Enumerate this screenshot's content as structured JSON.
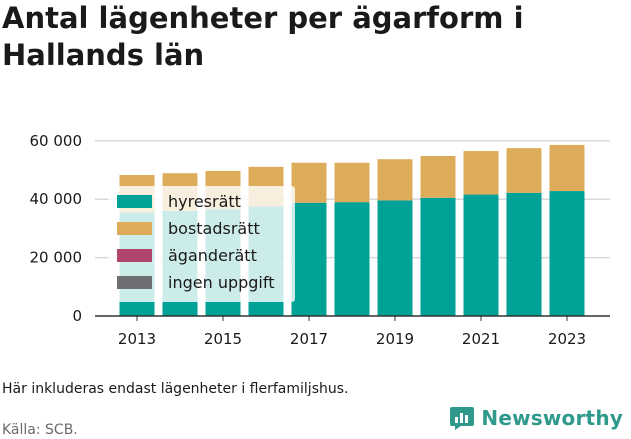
{
  "title": "Antal lägenheter per ägarform i Hallands län",
  "note": "Här inkluderas endast lägenheter i flerfamiljshus.",
  "source": "Källa: SCB.",
  "brand": "Newsworthy",
  "colors": {
    "hyresratt": "#00a197",
    "bostadsratt": "#dcac5b",
    "aganderatt": "#b0456c",
    "ingen_uppgift": "#6e6e73",
    "grid": "#d9d9d9",
    "brand": "#2f9a8c"
  },
  "chart_data": {
    "type": "bar",
    "stacked": true,
    "categories": [
      "2013",
      "2014",
      "2015",
      "2016",
      "2017",
      "2018",
      "2019",
      "2020",
      "2021",
      "2022",
      "2023"
    ],
    "x_tick_labels": [
      "2013",
      "2015",
      "2017",
      "2019",
      "2021",
      "2023"
    ],
    "y_tick_labels": [
      "0",
      "20 000",
      "40 000",
      "60 000"
    ],
    "y_ticks": [
      0,
      20000,
      40000,
      60000
    ],
    "ylim": [
      0,
      62000
    ],
    "grid": true,
    "legend_position": "inside top-left",
    "series": [
      {
        "name": "hyresrätt",
        "color": "#00a197",
        "values": [
          35500,
          36000,
          36500,
          37500,
          38800,
          39000,
          39600,
          40500,
          41600,
          42200,
          42800
        ]
      },
      {
        "name": "bostadsrätt",
        "color": "#dcac5b",
        "values": [
          12800,
          12900,
          13200,
          13600,
          13700,
          13500,
          14100,
          14300,
          14900,
          15300,
          15800
        ]
      },
      {
        "name": "äganderätt",
        "color": "#b0456c",
        "values": [
          0,
          0,
          0,
          0,
          0,
          0,
          0,
          0,
          0,
          0,
          0
        ]
      },
      {
        "name": "ingen uppgift",
        "color": "#6e6e73",
        "values": [
          0,
          0,
          0,
          0,
          0,
          0,
          0,
          0,
          0,
          0,
          0
        ]
      }
    ]
  }
}
